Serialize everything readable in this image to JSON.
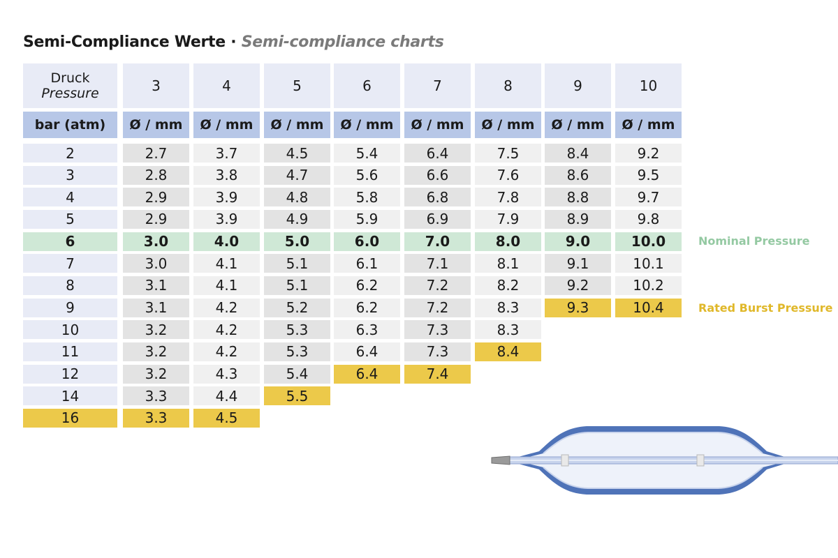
{
  "title": {
    "de": "Semi-Compliance Werte",
    "separator": "·",
    "en": "Semi-compliance charts"
  },
  "header": {
    "pressure_label_de": "Druck",
    "pressure_label_en": "Pressure",
    "unit_label": "bar (atm)",
    "diameter_unit": "Ø / mm",
    "sizes": [
      "3",
      "4",
      "5",
      "6",
      "7",
      "8",
      "9",
      "10"
    ]
  },
  "rows": [
    {
      "pressure": "2",
      "values": [
        "2.7",
        "3.7",
        "4.5",
        "5.4",
        "6.4",
        "7.5",
        "8.4",
        "9.2"
      ],
      "status": [
        "",
        "",
        "",
        "",
        "",
        "",
        "",
        ""
      ]
    },
    {
      "pressure": "3",
      "values": [
        "2.8",
        "3.8",
        "4.7",
        "5.6",
        "6.6",
        "7.6",
        "8.6",
        "9.5"
      ],
      "status": [
        "",
        "",
        "",
        "",
        "",
        "",
        "",
        ""
      ]
    },
    {
      "pressure": "4",
      "values": [
        "2.9",
        "3.9",
        "4.8",
        "5.8",
        "6.8",
        "7.8",
        "8.8",
        "9.7"
      ],
      "status": [
        "",
        "",
        "",
        "",
        "",
        "",
        "",
        ""
      ]
    },
    {
      "pressure": "5",
      "values": [
        "2.9",
        "3.9",
        "4.9",
        "5.9",
        "6.9",
        "7.9",
        "8.9",
        "9.8"
      ],
      "status": [
        "",
        "",
        "",
        "",
        "",
        "",
        "",
        ""
      ]
    },
    {
      "pressure": "6",
      "values": [
        "3.0",
        "4.0",
        "5.0",
        "6.0",
        "7.0",
        "8.0",
        "9.0",
        "10.0"
      ],
      "status": [
        "nominal",
        "nominal",
        "nominal",
        "nominal",
        "nominal",
        "nominal",
        "nominal",
        "nominal"
      ],
      "row_status": "nominal"
    },
    {
      "pressure": "7",
      "values": [
        "3.0",
        "4.1",
        "5.1",
        "6.1",
        "7.1",
        "8.1",
        "9.1",
        "10.1"
      ],
      "status": [
        "",
        "",
        "",
        "",
        "",
        "",
        "",
        ""
      ]
    },
    {
      "pressure": "8",
      "values": [
        "3.1",
        "4.1",
        "5.1",
        "6.2",
        "7.2",
        "8.2",
        "9.2",
        "10.2"
      ],
      "status": [
        "",
        "",
        "",
        "",
        "",
        "",
        "",
        ""
      ]
    },
    {
      "pressure": "9",
      "values": [
        "3.1",
        "4.2",
        "5.2",
        "6.2",
        "7.2",
        "8.3",
        "9.3",
        "10.4"
      ],
      "status": [
        "",
        "",
        "",
        "",
        "",
        "",
        "burst",
        "burst"
      ]
    },
    {
      "pressure": "10",
      "values": [
        "3.2",
        "4.2",
        "5.3",
        "6.3",
        "7.3",
        "8.3",
        null,
        null
      ],
      "status": [
        "",
        "",
        "",
        "",
        "",
        "",
        "",
        ""
      ]
    },
    {
      "pressure": "11",
      "values": [
        "3.2",
        "4.2",
        "5.3",
        "6.4",
        "7.3",
        "8.4",
        null,
        null
      ],
      "status": [
        "",
        "",
        "",
        "",
        "",
        "burst",
        "",
        ""
      ]
    },
    {
      "pressure": "12",
      "values": [
        "3.2",
        "4.3",
        "5.4",
        "6.4",
        "7.4",
        null,
        null,
        null
      ],
      "status": [
        "",
        "",
        "",
        "burst",
        "burst",
        "",
        "",
        ""
      ]
    },
    {
      "pressure": "14",
      "values": [
        "3.3",
        "4.4",
        "5.5",
        null,
        null,
        null,
        null,
        null
      ],
      "status": [
        "",
        "",
        "burst",
        "",
        "",
        "",
        "",
        ""
      ]
    },
    {
      "pressure": "16",
      "values": [
        "3.3",
        "4.5",
        null,
        null,
        null,
        null,
        null,
        null
      ],
      "status": [
        "burst",
        "burst",
        "",
        "",
        "",
        "",
        "",
        ""
      ],
      "row_status": "burst"
    }
  ],
  "legend": {
    "nominal": "Nominal Pressure",
    "rated_burst": "Rated Burst Pressure"
  },
  "colors": {
    "header_bg": "#e8ebf6",
    "unit_bg": "#b7c7e7",
    "nominal_bg": "#cfe8d6",
    "nominal_text": "#94c9a2",
    "burst_bg": "#ecc94a",
    "burst_text": "#e0b82a",
    "balloon_blue": "#4f73b8"
  }
}
